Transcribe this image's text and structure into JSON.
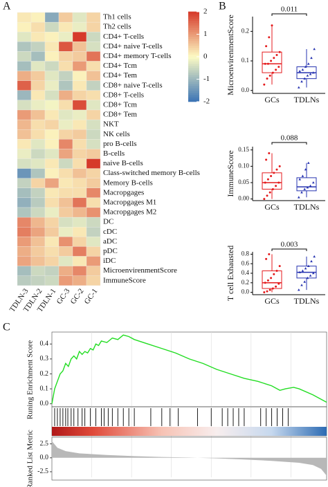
{
  "panel_labels": [
    "A",
    "B",
    "C"
  ],
  "chart_data": [
    {
      "type": "heatmap",
      "rows": [
        "Th1 cells",
        "Th2 cells",
        "CD4+ T-cells",
        "CD4+ naive T-cells",
        "CD4+ memory T-cells",
        "CD4+ Tcm",
        "CD4+ Tem",
        "CD8+ naive T-cells",
        "CD8+ T-cells",
        "CD8+ Tcm",
        "CD8+ Tem",
        "NKT",
        "NK cells",
        "pro B-cells",
        "B-cells",
        "naive B-cells",
        "Class-switched memory B-cells",
        "Memory B-cells",
        "Macropgages",
        "Macropgages M1",
        "Macropgages M2",
        "DC",
        "cDC",
        "aDC",
        "pDC",
        "iDC",
        "MicroenvirenmentScore",
        "ImmuneScore"
      ],
      "columns": [
        "TDLN-3",
        "TDLN-2",
        "TDLN-1",
        "GC-3",
        "GC-2",
        "GC-1"
      ],
      "values": [
        [
          0.2,
          0.1,
          -1.2,
          0.5,
          -0.3,
          0.4
        ],
        [
          0.1,
          0.3,
          -0.5,
          0.2,
          -0.2,
          0.4
        ],
        [
          -0.3,
          0.2,
          0.1,
          -0.2,
          2.0,
          -0.5
        ],
        [
          -0.8,
          -0.6,
          0.2,
          1.7,
          0.6,
          -0.4
        ],
        [
          -0.5,
          -0.9,
          0.1,
          0.4,
          0.5,
          1.4
        ],
        [
          -0.9,
          -0.3,
          -0.5,
          0.3,
          1.0,
          0.3
        ],
        [
          0.8,
          0.5,
          -0.3,
          -0.6,
          0.1,
          0.6
        ],
        [
          1.6,
          0.4,
          -0.2,
          -0.8,
          0.2,
          -0.6
        ],
        [
          -1.0,
          0.2,
          -0.4,
          0.8,
          0.4,
          0.3
        ],
        [
          -0.4,
          -0.2,
          -0.1,
          0.3,
          1.8,
          -0.3
        ],
        [
          1.0,
          0.6,
          0.2,
          -0.3,
          -0.2,
          0.4
        ],
        [
          0.7,
          0.3,
          0.4,
          -0.2,
          0.2,
          -0.4
        ],
        [
          0.6,
          0.3,
          0.1,
          0.4,
          0.5,
          -0.5
        ],
        [
          0.2,
          -0.3,
          0.1,
          1.2,
          0.3,
          -0.4
        ],
        [
          -0.2,
          -0.5,
          -0.3,
          0.9,
          0.4,
          0.5
        ],
        [
          -0.4,
          -0.3,
          0.2,
          -0.5,
          0.3,
          2.0
        ],
        [
          -1.5,
          -0.8,
          0.1,
          0.3,
          0.6,
          0.4
        ],
        [
          -0.6,
          0.4,
          0.9,
          0.2,
          0.3,
          0.5
        ],
        [
          -0.9,
          -0.6,
          0.2,
          0.3,
          0.3,
          1.2
        ],
        [
          -1.1,
          -0.7,
          0.3,
          0.6,
          1.4,
          0.3
        ],
        [
          -0.8,
          -0.5,
          -0.2,
          0.5,
          0.7,
          1.1
        ],
        [
          1.2,
          0.7,
          0.4,
          -0.4,
          -0.3,
          -0.5
        ],
        [
          1.3,
          0.9,
          0.5,
          -0.2,
          0.2,
          -0.6
        ],
        [
          1.0,
          0.6,
          0.2,
          1.1,
          0.4,
          -0.3
        ],
        [
          0.8,
          0.5,
          0.3,
          0.5,
          1.3,
          0.4
        ],
        [
          0.9,
          0.6,
          0.4,
          -0.3,
          0.2,
          1.0
        ],
        [
          -0.9,
          -0.5,
          -0.6,
          0.8,
          1.2,
          0.5
        ],
        [
          -0.7,
          -0.6,
          -0.5,
          1.0,
          0.8,
          0.4
        ]
      ],
      "clim": [
        -2,
        2
      ],
      "colorbar_ticks": [
        2,
        1,
        0,
        -1,
        -2
      ],
      "colors": [
        "#3a73b5",
        "#fdfbc4",
        "#d63a2a"
      ]
    },
    {
      "type": "box",
      "ylabel": "MicroenvirenmentScore",
      "annotation": "0.011",
      "ylim": [
        -0.01,
        0.25
      ],
      "yticks": [
        {
          "value": 0,
          "label": "0.0"
        },
        0.1,
        0.2
      ],
      "boxes": [
        {
          "name": "GCs",
          "color": "#e41a1c",
          "whisker_low": 0.02,
          "q1": 0.06,
          "median": 0.09,
          "q3": 0.13,
          "whisker_high": 0.22,
          "points": [
            0.02,
            0.04,
            0.05,
            0.06,
            0.07,
            0.08,
            0.09,
            0.09,
            0.1,
            0.11,
            0.12,
            0.13,
            0.15,
            0.18,
            0.22
          ]
        },
        {
          "name": "TDLNs",
          "color": "#2633b0",
          "whisker_low": 0.01,
          "q1": 0.04,
          "median": 0.06,
          "q3": 0.08,
          "whisker_high": 0.14,
          "points": [
            0.01,
            0.03,
            0.04,
            0.05,
            0.055,
            0.06,
            0.065,
            0.07,
            0.08,
            0.09,
            0.11,
            0.14
          ]
        }
      ]
    },
    {
      "type": "box",
      "ylabel": "ImmuneScore",
      "annotation": "0.088",
      "ylim": [
        -0.005,
        0.16
      ],
      "yticks": [
        {
          "value": 0,
          "label": "0.00"
        },
        0.05,
        {
          "value": 0.1,
          "label": "0.10"
        },
        0.15
      ],
      "boxes": [
        {
          "name": "GCs",
          "color": "#e41a1c",
          "whisker_low": 0.0,
          "q1": 0.03,
          "median": 0.05,
          "q3": 0.08,
          "whisker_high": 0.14,
          "points": [
            0.0,
            0.01,
            0.02,
            0.03,
            0.04,
            0.05,
            0.05,
            0.06,
            0.07,
            0.08,
            0.09,
            0.1,
            0.12,
            0.14
          ]
        },
        {
          "name": "TDLNs",
          "color": "#2633b0",
          "whisker_low": 0.005,
          "q1": 0.025,
          "median": 0.037,
          "q3": 0.065,
          "whisker_high": 0.11,
          "points": [
            0.005,
            0.02,
            0.03,
            0.035,
            0.04,
            0.05,
            0.06,
            0.07,
            0.09,
            0.11
          ]
        }
      ]
    },
    {
      "type": "box",
      "ylabel": "T cell Exhausted",
      "annotation": "0.003",
      "ylim": [
        -0.05,
        0.85
      ],
      "yticks": [
        {
          "value": 0,
          "label": "0.0"
        },
        0.2,
        0.4,
        0.6,
        0.8
      ],
      "boxes": [
        {
          "name": "GCs",
          "color": "#e41a1c",
          "whisker_low": 0.0,
          "q1": 0.08,
          "median": 0.2,
          "q3": 0.45,
          "whisker_high": 0.8,
          "points": [
            0.0,
            0.02,
            0.05,
            0.08,
            0.12,
            0.18,
            0.2,
            0.25,
            0.3,
            0.38,
            0.45,
            0.55,
            0.7,
            0.8
          ]
        },
        {
          "name": "TDLNs",
          "color": "#2633b0",
          "whisker_low": 0.05,
          "q1": 0.3,
          "median": 0.42,
          "q3": 0.55,
          "whisker_high": 0.75,
          "points": [
            0.05,
            0.15,
            0.22,
            0.3,
            0.35,
            0.4,
            0.42,
            0.45,
            0.5,
            0.55,
            0.65,
            0.75
          ]
        }
      ]
    },
    {
      "type": "gsea",
      "ylabel": "Runing Enrichment Score",
      "color": "#22dd22",
      "xlim": [
        0,
        100
      ],
      "ylim": [
        -0.02,
        0.48
      ],
      "yticks": [
        {
          "value": 0,
          "label": "0.0"
        },
        0.1,
        0.2,
        0.3,
        0.4
      ],
      "xgrid": [
        14.5,
        29,
        43.5,
        58,
        72.5,
        87
      ],
      "x": [
        0,
        1,
        2,
        3,
        4,
        5,
        6,
        7,
        8,
        9,
        10,
        11,
        12,
        13,
        14,
        15,
        16,
        17,
        18,
        20,
        22,
        24,
        26,
        28,
        30,
        35,
        40,
        45,
        50,
        55,
        60,
        65,
        70,
        75,
        80,
        83,
        85,
        88,
        90,
        95,
        100
      ],
      "values": [
        0,
        0.1,
        0.15,
        0.2,
        0.22,
        0.27,
        0.25,
        0.3,
        0.32,
        0.3,
        0.35,
        0.33,
        0.35,
        0.34,
        0.37,
        0.36,
        0.4,
        0.39,
        0.42,
        0.41,
        0.44,
        0.43,
        0.46,
        0.45,
        0.43,
        0.4,
        0.37,
        0.34,
        0.3,
        0.27,
        0.23,
        0.2,
        0.17,
        0.15,
        0.12,
        0.09,
        0.1,
        0.11,
        0.1,
        0.06,
        0.01
      ],
      "hits": [
        1,
        2,
        3,
        4,
        5,
        5.8,
        7,
        8,
        9.5,
        11,
        12,
        14,
        16,
        18,
        19,
        20.5,
        22,
        24,
        26,
        28,
        30,
        36,
        40,
        43,
        46,
        53,
        58,
        62,
        64,
        66,
        68,
        70,
        76,
        78,
        80,
        82,
        84,
        86
      ],
      "ranked_ylabel": "Ranked List Metric",
      "ranked_ylim": [
        -3.5,
        3.2
      ],
      "ranked_yticks": [
        2.5,
        {
          "value": 0,
          "label": "0.0"
        },
        -2.5
      ],
      "ranked_x": [
        0,
        2,
        5,
        10,
        20,
        30,
        40,
        50,
        60,
        70,
        80,
        90,
        95,
        98,
        100
      ],
      "ranked_values": [
        3.0,
        1.8,
        1.2,
        0.8,
        0.5,
        0.3,
        0.15,
        0.05,
        -0.1,
        -0.3,
        -0.55,
        -0.9,
        -1.3,
        -2.0,
        -3.2
      ]
    }
  ]
}
